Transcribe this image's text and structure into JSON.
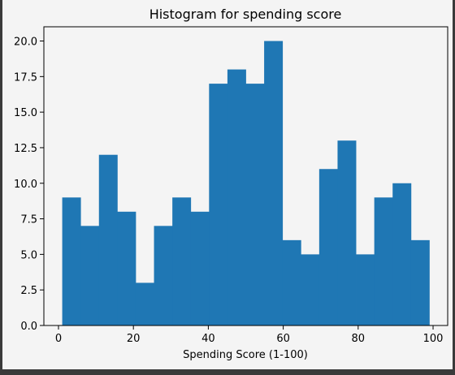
{
  "chart_data": {
    "type": "bar",
    "title": "Histogram for spending score",
    "xlabel": "Spending Score (1-100)",
    "ylabel": "",
    "xlim": [
      -3.9,
      103.9
    ],
    "ylim": [
      0,
      21
    ],
    "x_ticks": [
      0,
      20,
      40,
      60,
      80,
      100
    ],
    "y_ticks": [
      0.0,
      2.5,
      5.0,
      7.5,
      10.0,
      12.5,
      15.0,
      17.5,
      20.0
    ],
    "bin_edges": [
      1,
      5.9,
      10.8,
      15.7,
      20.6,
      25.5,
      30.4,
      35.3,
      40.2,
      45.1,
      50,
      54.9,
      59.8,
      64.7,
      69.6,
      74.5,
      79.4,
      84.3,
      89.2,
      94.1,
      99
    ],
    "values": [
      9,
      7,
      12,
      8,
      3,
      7,
      9,
      8,
      17,
      18,
      17,
      20,
      6,
      5,
      11,
      13,
      5,
      9,
      10,
      6
    ],
    "bar_color": "#1f77b4",
    "grid": false
  }
}
